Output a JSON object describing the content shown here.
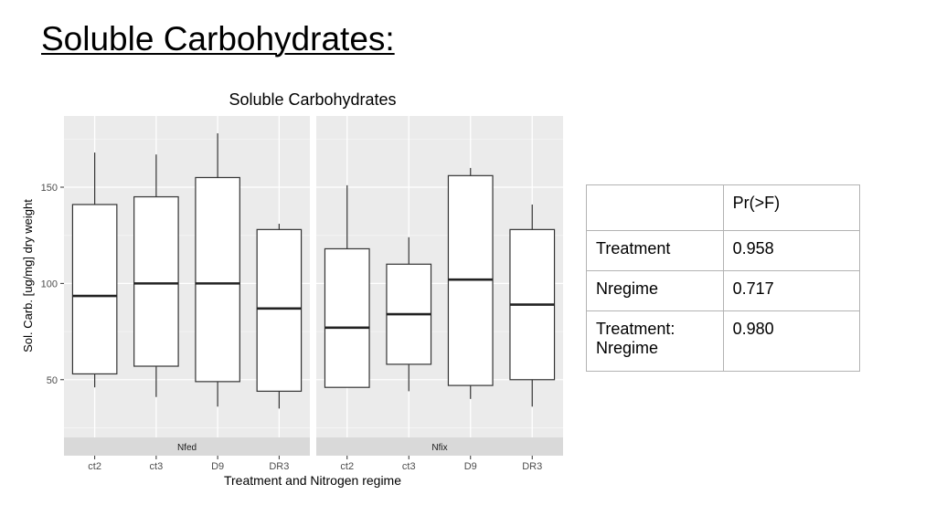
{
  "slide": {
    "title": "Soluble Carbohydrates:"
  },
  "chart_data": {
    "type": "boxplot",
    "title": "Soluble Carbohydrates",
    "xlabel": "Treatment and Nitrogen regime",
    "ylabel": "Sol. Carb. [ug/mg] dry weight",
    "ylim": [
      20,
      187
    ],
    "yticks": [
      50,
      100,
      150
    ],
    "grid": true,
    "facets": [
      {
        "name": "Nfed",
        "categories": [
          "ct2",
          "ct3",
          "D9",
          "DR3"
        ],
        "boxes": [
          {
            "min": 46,
            "q1": 53,
            "median": 93.5,
            "q3": 141,
            "max": 168
          },
          {
            "min": 41,
            "q1": 57,
            "median": 100,
            "q3": 145,
            "max": 167
          },
          {
            "min": 36,
            "q1": 49,
            "median": 100,
            "q3": 155,
            "max": 178
          },
          {
            "min": 35,
            "q1": 44,
            "median": 87,
            "q3": 128,
            "max": 131
          }
        ]
      },
      {
        "name": "Nfix",
        "categories": [
          "ct2",
          "ct3",
          "D9",
          "DR3"
        ],
        "boxes": [
          {
            "min": 46,
            "q1": 46,
            "median": 77,
            "q3": 118,
            "max": 151
          },
          {
            "min": 44,
            "q1": 58,
            "median": 84,
            "q3": 110,
            "max": 124
          },
          {
            "min": 40,
            "q1": 47,
            "median": 102,
            "q3": 156,
            "max": 160
          },
          {
            "min": 36,
            "q1": 50,
            "median": 89,
            "q3": 128,
            "max": 141
          }
        ]
      }
    ]
  },
  "anova_table": {
    "header": [
      "",
      "Pr(>F)"
    ],
    "rows": [
      {
        "term": "Treatment",
        "p": "0.958"
      },
      {
        "term": "Nregime",
        "p": "0.717"
      },
      {
        "term": "Treatment:\nNregime",
        "p": "0.980"
      }
    ]
  }
}
